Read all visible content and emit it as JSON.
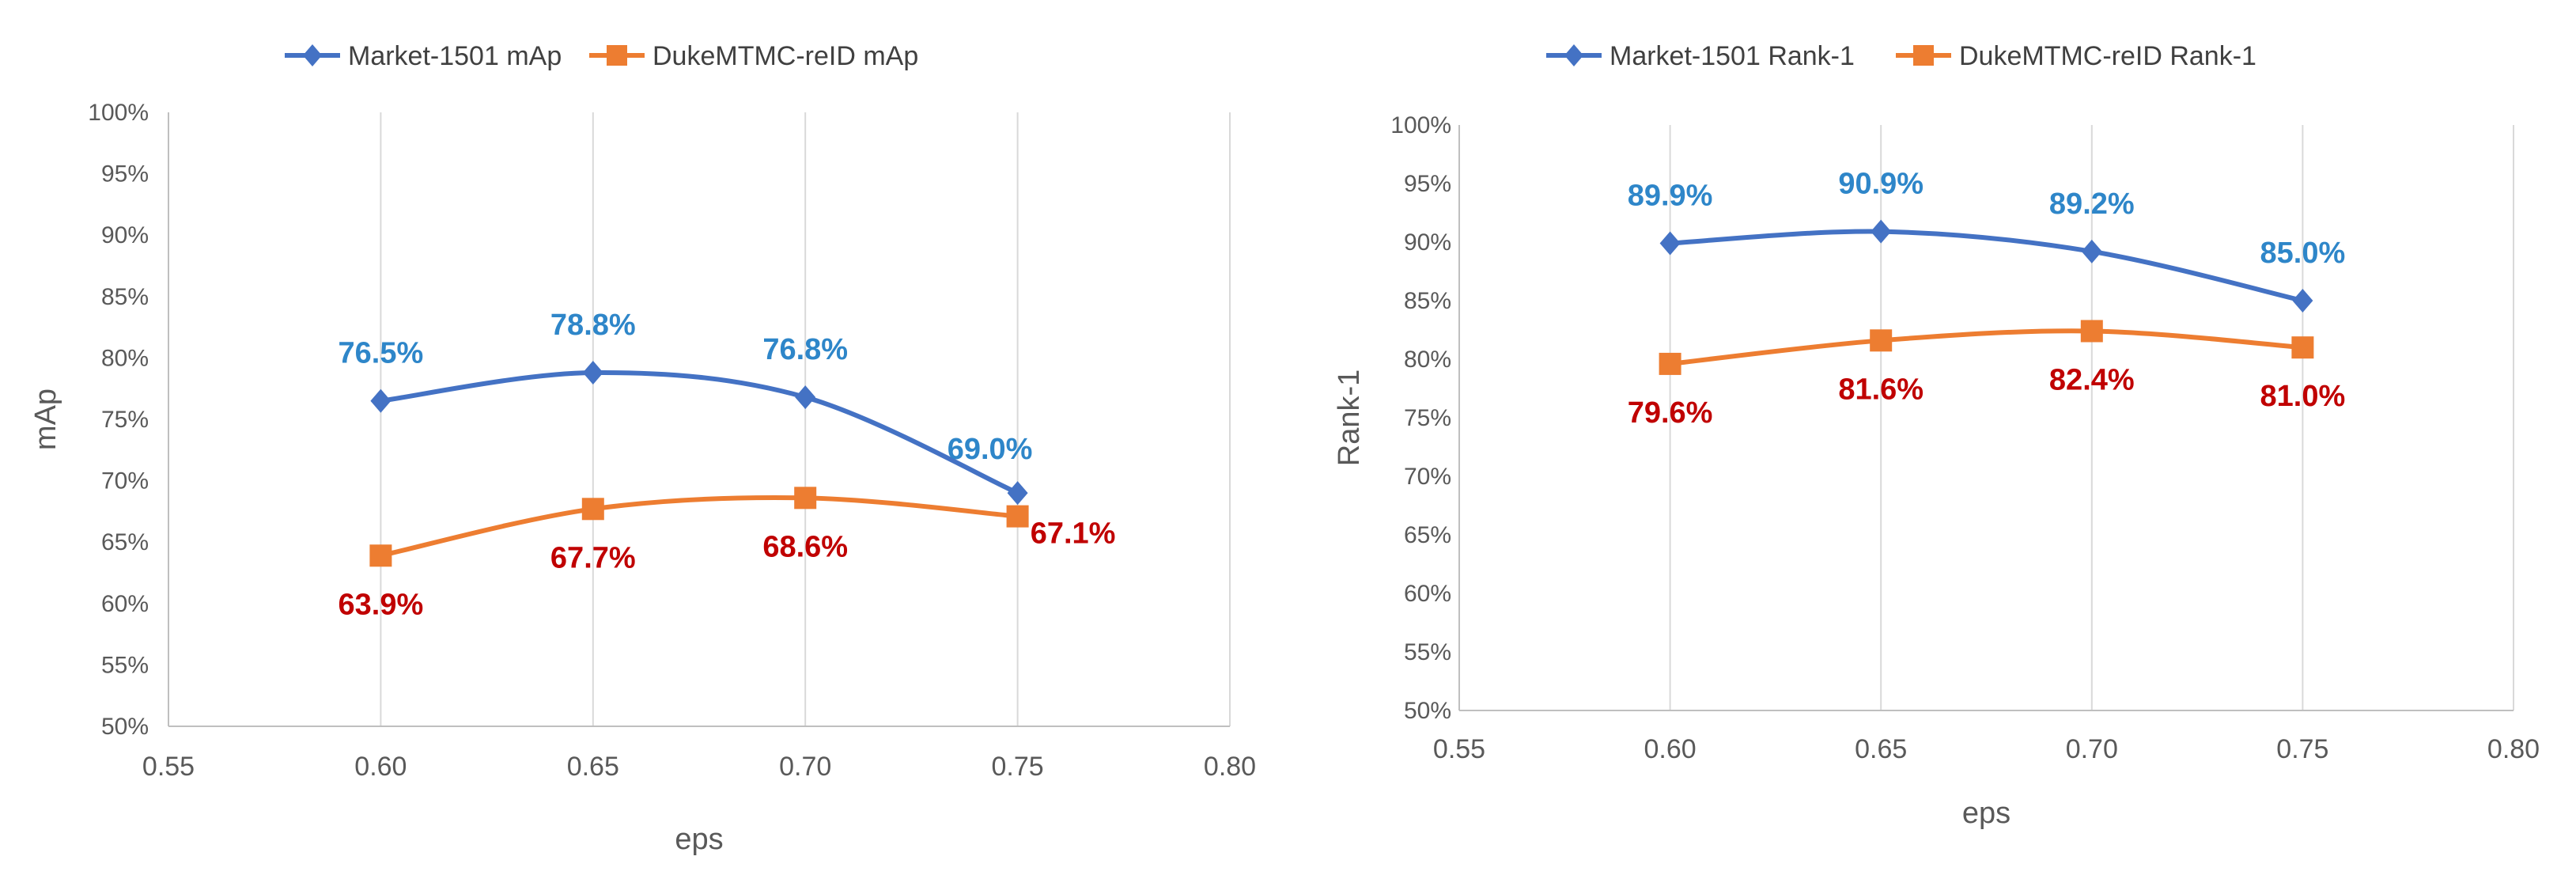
{
  "colors": {
    "market": "#4472C4",
    "duke": "#ED7D31",
    "market_label": "#2E86C9",
    "duke_label": "#C00000",
    "grid": "#D9D9D9",
    "axis": "#BFBFBF"
  },
  "chart_data": [
    {
      "type": "line",
      "title": "",
      "xlabel": "eps",
      "ylabel": "mAp",
      "xlim": [
        0.55,
        0.8
      ],
      "ylim": [
        0.5,
        1.0
      ],
      "x_ticks": [
        "0.55",
        "0.60",
        "0.65",
        "0.70",
        "0.75",
        "0.80"
      ],
      "y_ticks": [
        "50%",
        "55%",
        "60%",
        "65%",
        "70%",
        "75%",
        "80%",
        "85%",
        "90%",
        "95%",
        "100%"
      ],
      "grid": "vertical",
      "legend_position": "top",
      "series": [
        {
          "name": "Market-1501 mAp",
          "marker": "diamond",
          "color_key": "market",
          "x": [
            0.6,
            0.65,
            0.7,
            0.75
          ],
          "values": [
            0.765,
            0.788,
            0.768,
            0.69
          ],
          "labels": [
            "76.5%",
            "78.8%",
            "76.8%",
            "69.0%"
          ]
        },
        {
          "name": "DukeMTMC-reID mAp",
          "marker": "square",
          "color_key": "duke",
          "x": [
            0.6,
            0.65,
            0.7,
            0.75
          ],
          "values": [
            0.639,
            0.677,
            0.686,
            0.671
          ],
          "labels": [
            "63.9%",
            "67.7%",
            "68.6%",
            "67.1%"
          ]
        }
      ]
    },
    {
      "type": "line",
      "title": "",
      "xlabel": "eps",
      "ylabel": "Rank-1",
      "xlim": [
        0.55,
        0.8
      ],
      "ylim": [
        0.5,
        1.0
      ],
      "x_ticks": [
        "0.55",
        "0.60",
        "0.65",
        "0.70",
        "0.75",
        "0.80"
      ],
      "y_ticks": [
        "50%",
        "55%",
        "60%",
        "65%",
        "70%",
        "75%",
        "80%",
        "85%",
        "90%",
        "95%",
        "100%"
      ],
      "grid": "vertical",
      "legend_position": "top",
      "series": [
        {
          "name": "Market-1501 Rank-1",
          "marker": "diamond",
          "color_key": "market",
          "x": [
            0.6,
            0.65,
            0.7,
            0.75
          ],
          "values": [
            0.899,
            0.909,
            0.892,
            0.85
          ],
          "labels": [
            "89.9%",
            "90.9%",
            "89.2%",
            "85.0%"
          ]
        },
        {
          "name": "DukeMTMC-reID Rank-1",
          "marker": "square",
          "color_key": "duke",
          "x": [
            0.6,
            0.65,
            0.7,
            0.75
          ],
          "values": [
            0.796,
            0.816,
            0.824,
            0.81
          ],
          "labels": [
            "79.6%",
            "81.6%",
            "82.4%",
            "81.0%"
          ]
        }
      ]
    }
  ]
}
